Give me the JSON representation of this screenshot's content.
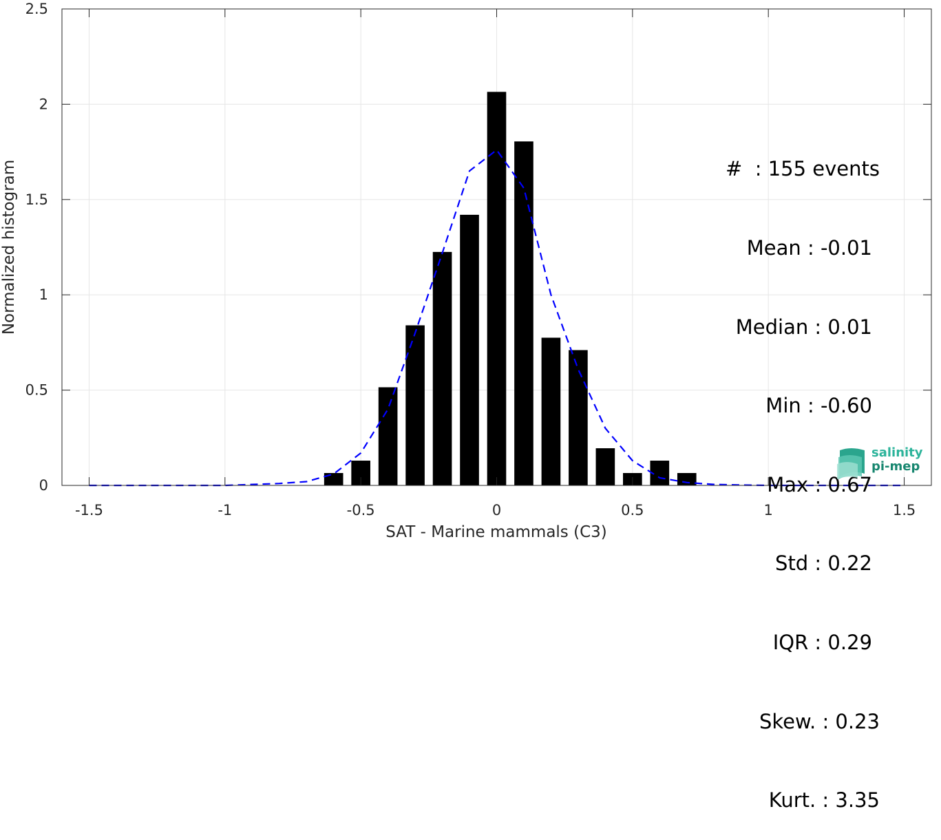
{
  "chart_data": {
    "type": "bar",
    "xlabel": "SAT - Marine mammals (C3)",
    "ylabel": "Normalized histogram",
    "xlim": [
      -1.6,
      1.6
    ],
    "ylim": [
      0,
      2.5
    ],
    "xticks": [
      "-1.5",
      "-1",
      "-0.5",
      "0",
      "0.5",
      "1",
      "1.5"
    ],
    "yticks": [
      "0",
      "0.5",
      "1",
      "1.5",
      "2",
      "2.5"
    ],
    "grid": true,
    "bin_width": 0.1,
    "bars": {
      "x": [
        -0.6,
        -0.5,
        -0.4,
        -0.3,
        -0.2,
        -0.1,
        0.0,
        0.1,
        0.2,
        0.3,
        0.4,
        0.5,
        0.6,
        0.7
      ],
      "values": [
        0.065,
        0.13,
        0.515,
        0.84,
        1.225,
        1.42,
        2.065,
        1.805,
        0.775,
        0.71,
        0.195,
        0.065,
        0.13,
        0.065
      ],
      "color": "#000000"
    },
    "fit_line": {
      "style": "dashed",
      "color": "#0000ff",
      "x": [
        -1.5,
        -1.4,
        -1.3,
        -1.2,
        -1.1,
        -1.0,
        -0.9,
        -0.8,
        -0.7,
        -0.6,
        -0.5,
        -0.4,
        -0.3,
        -0.2,
        -0.1,
        0.0,
        0.1,
        0.2,
        0.3,
        0.4,
        0.5,
        0.6,
        0.7,
        0.8,
        0.9,
        1.0,
        1.1,
        1.2,
        1.3,
        1.4,
        1.5
      ],
      "y": [
        0.0,
        0.0,
        0.0,
        0.0,
        0.0,
        0.0,
        0.005,
        0.01,
        0.02,
        0.06,
        0.17,
        0.4,
        0.8,
        1.22,
        1.65,
        1.76,
        1.56,
        1.0,
        0.61,
        0.3,
        0.13,
        0.04,
        0.015,
        0.005,
        0.002,
        0.0,
        0.0,
        0.0,
        0.0,
        0.0,
        0.0
      ]
    },
    "annotations": [
      "#  : 155 events",
      "Mean : -0.01",
      "Median : 0.01",
      "Min : -0.60",
      "Max : 0.67",
      "Std : 0.22",
      "IQR : 0.29",
      "Skew. : 0.23",
      "Kurt. : 3.35"
    ]
  },
  "logo": {
    "line1": "salinity",
    "line2": "pi-mep"
  }
}
